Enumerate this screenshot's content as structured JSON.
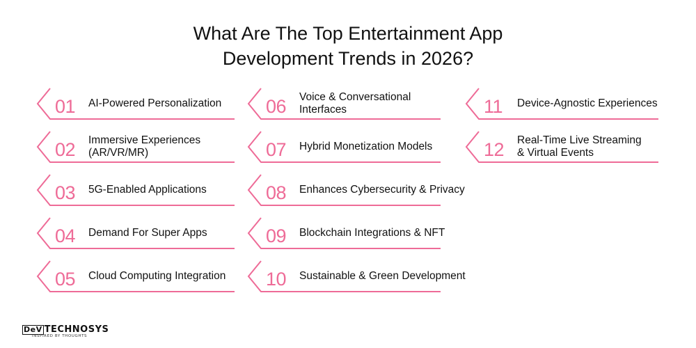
{
  "title_line1": "What Are The Top Entertainment App",
  "title_line2": "Development Trends in 2026?",
  "accent_color": "#ee6b97",
  "items": [
    {
      "num": "01",
      "label": "AI-Powered Personalization"
    },
    {
      "num": "02",
      "label": "Immersive Experiences\n(AR/VR/MR)"
    },
    {
      "num": "03",
      "label": "5G-Enabled Applications"
    },
    {
      "num": "04",
      "label": "Demand For Super Apps"
    },
    {
      "num": "05",
      "label": "Cloud Computing Integration"
    },
    {
      "num": "06",
      "label": "Voice & Conversational\nInterfaces"
    },
    {
      "num": "07",
      "label": "Hybrid Monetization Models"
    },
    {
      "num": "08",
      "label": "Enhances Cybersecurity & Privacy"
    },
    {
      "num": "09",
      "label": "Blockchain Integrations & NFT"
    },
    {
      "num": "10",
      "label": "Sustainable & Green Development"
    },
    {
      "num": "11",
      "label": "Device-Agnostic Experiences"
    },
    {
      "num": "12",
      "label": "Real-Time Live Streaming\n& Virtual Events"
    }
  ],
  "logo": {
    "dev": "DeV",
    "brand": "TECHNOSYS",
    "tagline": "INSPIRED BY THOUGHTS"
  }
}
